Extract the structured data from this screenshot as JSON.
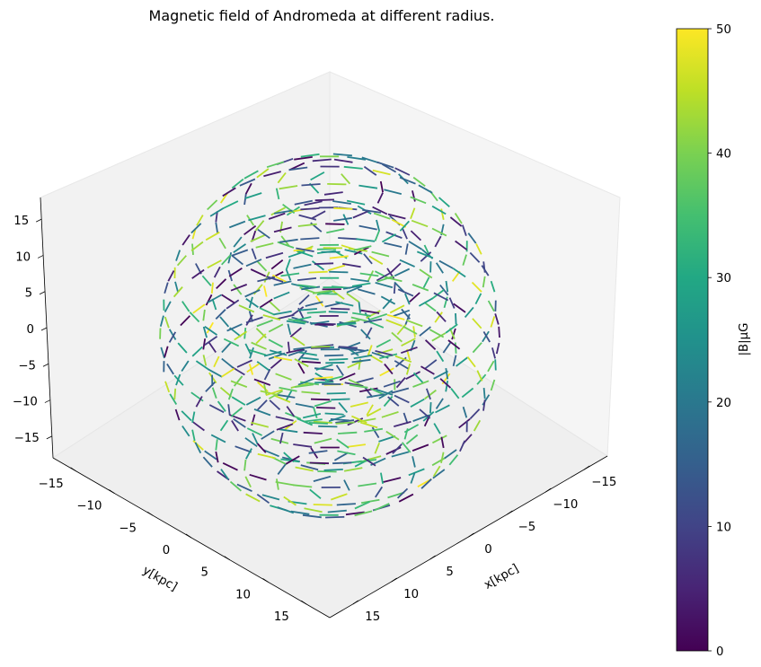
{
  "chart_data": {
    "type": "quiver3d",
    "title": "Magnetic field of Andromeda at different radius.",
    "xlabel": "x[kpc]",
    "ylabel": "y[kpc]",
    "zlabel": "",
    "xlim": [
      -18,
      18
    ],
    "ylim": [
      -18,
      18
    ],
    "zlim": [
      -18,
      18
    ],
    "x_ticks": [
      -15,
      -10,
      -5,
      0,
      5,
      10,
      15
    ],
    "y_ticks": [
      -15,
      -10,
      -5,
      0,
      5,
      10,
      15
    ],
    "z_ticks": [
      -15,
      -10,
      -5,
      0,
      5,
      10,
      15
    ],
    "colorbar": {
      "label": "|B|μG",
      "range": [
        0,
        50
      ],
      "ticks": [
        0,
        10,
        20,
        30,
        40,
        50
      ],
      "colormap": "viridis"
    },
    "field": {
      "description": "arrows on concentric spherical shells, colored by |B|",
      "shell_radii_kpc": [
        4,
        8,
        12,
        16
      ],
      "magnitude_range": [
        0,
        50
      ]
    },
    "background": {
      "pane_color": "#f2f2f2",
      "edge_color": "#000000"
    }
  }
}
